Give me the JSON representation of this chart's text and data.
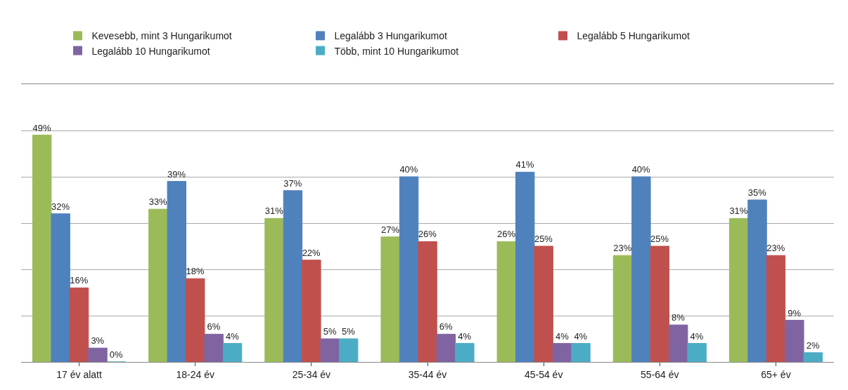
{
  "chart_data": {
    "type": "bar",
    "categories": [
      "17 év alatt",
      "18-24 év",
      "25-34 év",
      "35-44 év",
      "45-54 év",
      "55-64 év",
      "65+ év"
    ],
    "series": [
      {
        "name": "Kevesebb, mint 3 Hungarikumot",
        "color": "#9bbb59",
        "values": [
          49,
          33,
          31,
          27,
          26,
          23,
          31
        ],
        "value_labels": [
          "49%",
          "33%",
          "31%",
          "27%",
          "26%",
          "23%",
          "31%"
        ]
      },
      {
        "name": "Legalább 3 Hungarikumot",
        "color": "#4f81bd",
        "values": [
          32,
          39,
          37,
          40,
          41,
          40,
          35
        ],
        "value_labels": [
          "32%",
          "39%",
          "37%",
          "40%",
          "41%",
          "40%",
          "35%"
        ]
      },
      {
        "name": "Legalább 5 Hungarikumot",
        "color": "#c0504d",
        "values": [
          16,
          18,
          22,
          26,
          25,
          25,
          23
        ],
        "value_labels": [
          "16%",
          "18%",
          "22%",
          "26%",
          "25%",
          "25%",
          "23%"
        ]
      },
      {
        "name": "Legalább 10 Hungarikumot",
        "color": "#8064a2",
        "values": [
          3,
          6,
          5,
          6,
          4,
          8,
          9
        ],
        "value_labels": [
          "3%",
          "6%",
          "5%",
          "6%",
          "4%",
          "8%",
          "9%"
        ]
      },
      {
        "name": "Több, mint 10 Hungarikumot",
        "color": "#4bacc6",
        "values": [
          0,
          4,
          5,
          4,
          4,
          4,
          2
        ],
        "value_labels": [
          "0%",
          "4%",
          "5%",
          "4%",
          "4%",
          "4%",
          "2%"
        ]
      }
    ],
    "ylim": [
      0,
      60
    ],
    "yticks": [
      {
        "value": 0,
        "label": null
      },
      {
        "value": 10,
        "label": null
      },
      {
        "value": 20,
        "label": null
      },
      {
        "value": 30,
        "label": null
      },
      {
        "value": 40,
        "label": null
      },
      {
        "value": 50,
        "label": null
      },
      {
        "value": 60,
        "label": null
      }
    ],
    "tick_labels": "x",
    "grid": "y",
    "legend": "top"
  }
}
